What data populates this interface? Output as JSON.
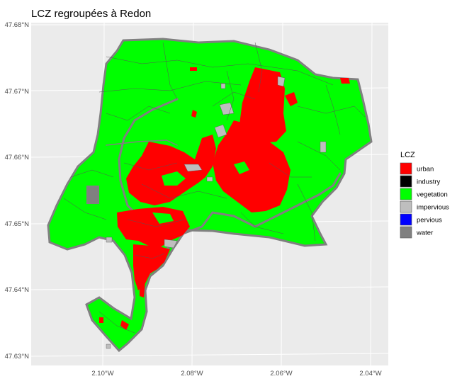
{
  "title": "LCZ regroupées à Redon",
  "axes": {
    "x_ticks": [
      "2.10°W",
      "2.08°W",
      "2.06°W",
      "2.04°W"
    ],
    "y_ticks": [
      "47.68°N",
      "47.67°N",
      "47.66°N",
      "47.65°N",
      "47.64°N",
      "47.63°N"
    ]
  },
  "legend": {
    "title": "LCZ",
    "items": [
      {
        "label": "urban",
        "color": "#ff0000"
      },
      {
        "label": "industry",
        "color": "#000000"
      },
      {
        "label": "vegetation",
        "color": "#00ff00"
      },
      {
        "label": "impervious",
        "color": "#bebebe"
      },
      {
        "label": "pervious",
        "color": "#0000ff"
      },
      {
        "label": "water",
        "color": "#808080"
      }
    ]
  },
  "colors": {
    "panel_background": "#ebebeb",
    "gridline": "#ffffff",
    "boundary": "#555555"
  }
}
